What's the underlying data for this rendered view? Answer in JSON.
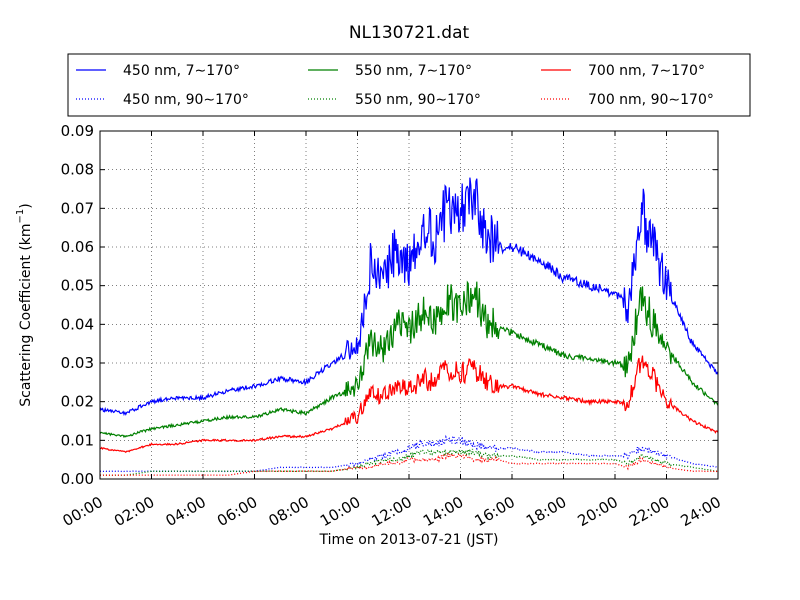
{
  "chart_data": {
    "type": "line",
    "title": "NL130721.dat",
    "xlabel": "Time on 2013-07-21 (JST)",
    "ylabel": "Scattering Coefficient (km",
    "ylabel_unit_exponent": "−1",
    "ylabel_suffix": ")",
    "xlim": [
      "00:00",
      "24:00"
    ],
    "ylim": [
      0,
      0.09
    ],
    "grid": true,
    "legend_position": "top",
    "x_ticks": [
      "00:00",
      "02:00",
      "04:00",
      "06:00",
      "08:00",
      "10:00",
      "12:00",
      "14:00",
      "16:00",
      "18:00",
      "20:00",
      "22:00",
      "24:00"
    ],
    "y_ticks": [
      "0.00",
      "0.01",
      "0.02",
      "0.03",
      "0.04",
      "0.05",
      "0.06",
      "0.07",
      "0.08",
      "0.09"
    ],
    "x_hours": [
      0,
      1,
      2,
      3,
      4,
      5,
      6,
      7,
      8,
      9,
      10,
      10.5,
      11,
      11.5,
      12,
      12.5,
      13,
      13.5,
      14,
      14.5,
      15,
      15.5,
      16,
      17,
      18,
      19,
      20,
      20.5,
      21,
      21.5,
      22,
      23,
      24
    ],
    "series": [
      {
        "name": "450 nm, 7∼170°",
        "color": "#0000ff",
        "dash": "solid",
        "values": [
          0.018,
          0.017,
          0.02,
          0.021,
          0.021,
          0.023,
          0.024,
          0.026,
          0.025,
          0.03,
          0.034,
          0.055,
          0.05,
          0.06,
          0.055,
          0.065,
          0.062,
          0.07,
          0.068,
          0.075,
          0.063,
          0.06,
          0.06,
          0.057,
          0.052,
          0.05,
          0.048,
          0.045,
          0.07,
          0.06,
          0.05,
          0.035,
          0.027
        ]
      },
      {
        "name": "550 nm, 7∼170°",
        "color": "#008000",
        "dash": "solid",
        "values": [
          0.012,
          0.011,
          0.013,
          0.014,
          0.015,
          0.016,
          0.016,
          0.018,
          0.017,
          0.021,
          0.024,
          0.036,
          0.033,
          0.04,
          0.038,
          0.043,
          0.04,
          0.047,
          0.044,
          0.048,
          0.041,
          0.039,
          0.038,
          0.035,
          0.032,
          0.031,
          0.03,
          0.029,
          0.048,
          0.04,
          0.034,
          0.025,
          0.019
        ]
      },
      {
        "name": "700 nm, 7∼170°",
        "color": "#ff0000",
        "dash": "solid",
        "values": [
          0.008,
          0.007,
          0.009,
          0.009,
          0.01,
          0.01,
          0.01,
          0.011,
          0.011,
          0.013,
          0.016,
          0.023,
          0.021,
          0.025,
          0.023,
          0.026,
          0.025,
          0.029,
          0.027,
          0.029,
          0.025,
          0.024,
          0.024,
          0.022,
          0.021,
          0.02,
          0.02,
          0.019,
          0.031,
          0.026,
          0.02,
          0.015,
          0.012
        ]
      },
      {
        "name": "450 nm, 90∼170°",
        "color": "#0000ff",
        "dash": "dotted",
        "values": [
          0.002,
          0.002,
          0.002,
          0.002,
          0.002,
          0.002,
          0.002,
          0.003,
          0.003,
          0.003,
          0.004,
          0.005,
          0.006,
          0.007,
          0.008,
          0.009,
          0.009,
          0.01,
          0.01,
          0.009,
          0.008,
          0.008,
          0.008,
          0.007,
          0.007,
          0.006,
          0.006,
          0.006,
          0.008,
          0.007,
          0.006,
          0.004,
          0.003
        ]
      },
      {
        "name": "550 nm, 90∼170°",
        "color": "#008000",
        "dash": "dotted",
        "values": [
          0.001,
          0.001,
          0.002,
          0.002,
          0.002,
          0.002,
          0.002,
          0.002,
          0.002,
          0.002,
          0.003,
          0.004,
          0.005,
          0.005,
          0.006,
          0.007,
          0.007,
          0.007,
          0.007,
          0.007,
          0.006,
          0.006,
          0.006,
          0.005,
          0.005,
          0.005,
          0.005,
          0.004,
          0.006,
          0.005,
          0.004,
          0.003,
          0.002
        ]
      },
      {
        "name": "700 nm, 90∼170°",
        "color": "#ff0000",
        "dash": "dotted",
        "values": [
          0.001,
          0.001,
          0.001,
          0.001,
          0.001,
          0.001,
          0.002,
          0.002,
          0.002,
          0.002,
          0.003,
          0.003,
          0.004,
          0.004,
          0.005,
          0.005,
          0.005,
          0.006,
          0.006,
          0.005,
          0.005,
          0.005,
          0.004,
          0.004,
          0.004,
          0.004,
          0.004,
          0.003,
          0.005,
          0.004,
          0.003,
          0.002,
          0.002
        ]
      }
    ]
  }
}
